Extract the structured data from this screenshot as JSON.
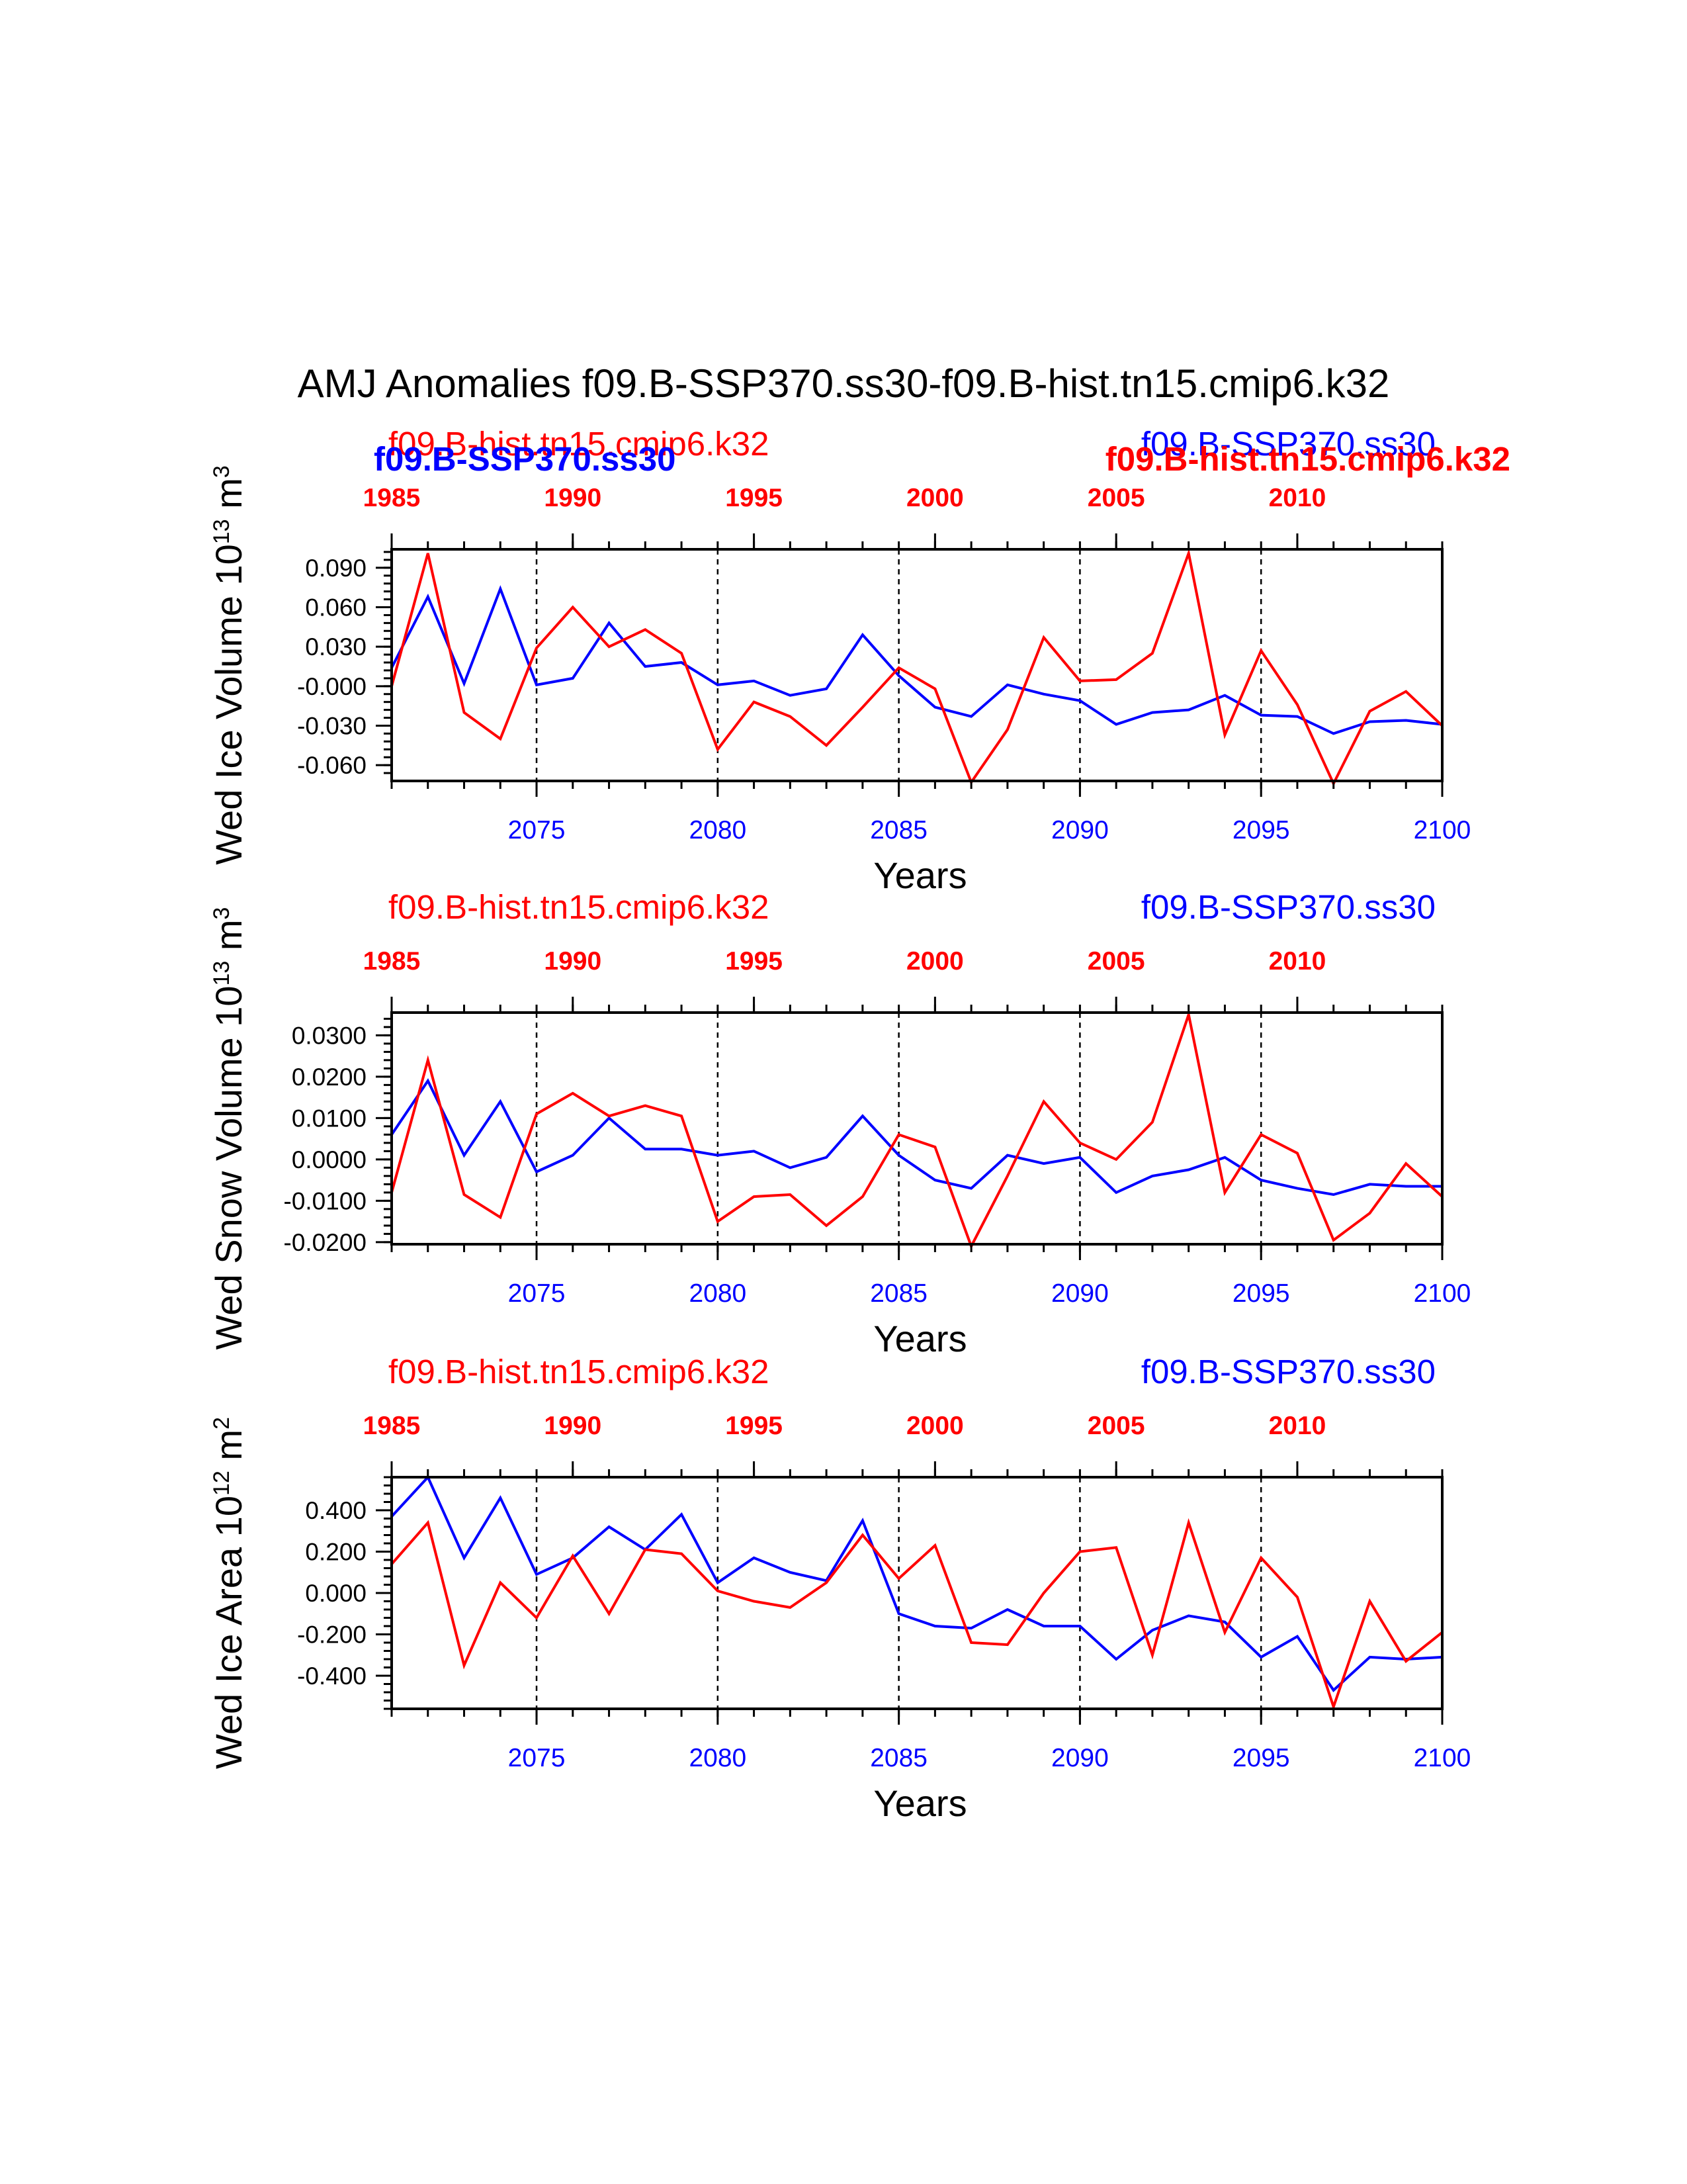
{
  "title": "AMJ Anomalies f09.B-SSP370.ss30-f09.B-hist.tn15.cmip6.k32",
  "colors": {
    "series_blue": "#0000ff",
    "series_red": "#ff0000",
    "axis": "#000000"
  },
  "chart_data": [
    {
      "type": "line",
      "ylabel_main": "Wed Ice Volume 10",
      "ylabel_exp": "13",
      "ylabel_unit": " m",
      "ylabel_unit_exp": "3",
      "xlabel": "Years",
      "ylim": [
        -0.072,
        0.104
      ],
      "yticks": [
        -0.06,
        -0.03,
        0.0,
        0.03,
        0.06,
        0.09
      ],
      "ytick_labels": [
        "-0.060",
        "-0.030",
        "-0.000",
        "0.030",
        "0.060",
        "0.090"
      ],
      "yminor_step": 0.006,
      "xlim": [
        2071,
        2100
      ],
      "bottom_ticks": [
        2075,
        2080,
        2085,
        2090,
        2095,
        2100
      ],
      "top_ticks": [
        1985,
        1990,
        1995,
        2000,
        2005,
        2010
      ],
      "top_offset": -86,
      "grid_years": [
        2075,
        2080,
        2085,
        2090,
        2095
      ],
      "label_red": "f09.B-hist.tn15.cmip6.k32",
      "label_blue": "f09.B-SSP370.ss30",
      "overlay_blue": "f09.B-SSP370.ss30",
      "overlay_red": "f09.B-hist.tn15.cmip6.k32",
      "x": [
        2071,
        2072,
        2073,
        2074,
        2075,
        2076,
        2077,
        2078,
        2079,
        2080,
        2081,
        2082,
        2083,
        2084,
        2085,
        2086,
        2087,
        2088,
        2089,
        2090,
        2091,
        2092,
        2093,
        2094,
        2095,
        2096,
        2097,
        2098,
        2099,
        2100
      ],
      "series": [
        {
          "name": "f09.B-SSP370.ss30",
          "color": "#0000ff",
          "values": [
            0.014,
            0.068,
            0.002,
            0.074,
            0.001,
            0.006,
            0.048,
            0.015,
            0.018,
            0.001,
            0.004,
            -0.007,
            -0.002,
            0.039,
            0.008,
            -0.016,
            -0.023,
            0.001,
            -0.006,
            -0.011,
            -0.029,
            -0.02,
            -0.018,
            -0.007,
            -0.022,
            -0.023,
            -0.036,
            -0.027,
            -0.026,
            -0.029
          ]
        },
        {
          "name": "f09.B-hist.tn15.cmip6.k32",
          "color": "#ff0000",
          "values": [
            0.0,
            0.101,
            -0.02,
            -0.04,
            0.029,
            0.06,
            0.03,
            0.043,
            0.025,
            -0.048,
            -0.012,
            -0.023,
            -0.045,
            -0.016,
            0.014,
            -0.002,
            -0.073,
            -0.033,
            0.037,
            0.004,
            0.005,
            0.025,
            0.101,
            -0.037,
            0.027,
            -0.014,
            -0.074,
            -0.019,
            -0.004,
            -0.03
          ]
        }
      ]
    },
    {
      "type": "line",
      "ylabel_main": "Wed Snow Volume 10",
      "ylabel_exp": "13",
      "ylabel_unit": " m",
      "ylabel_unit_exp": "3",
      "xlabel": "Years",
      "ylim": [
        -0.0205,
        0.0355
      ],
      "yticks": [
        -0.02,
        -0.01,
        0.0,
        0.01,
        0.02,
        0.03
      ],
      "ytick_labels": [
        "-0.0200",
        "-0.0100",
        "0.0000",
        "0.0100",
        "0.0200",
        "0.0300"
      ],
      "yminor_step": 0.002,
      "xlim": [
        2071,
        2100
      ],
      "bottom_ticks": [
        2075,
        2080,
        2085,
        2090,
        2095,
        2100
      ],
      "top_ticks": [
        1985,
        1990,
        1995,
        2000,
        2005,
        2010
      ],
      "top_offset": -86,
      "grid_years": [
        2075,
        2080,
        2085,
        2090,
        2095
      ],
      "label_red": "f09.B-hist.tn15.cmip6.k32",
      "label_blue": "f09.B-SSP370.ss30",
      "x": [
        2071,
        2072,
        2073,
        2074,
        2075,
        2076,
        2077,
        2078,
        2079,
        2080,
        2081,
        2082,
        2083,
        2084,
        2085,
        2086,
        2087,
        2088,
        2089,
        2090,
        2091,
        2092,
        2093,
        2094,
        2095,
        2096,
        2097,
        2098,
        2099,
        2100
      ],
      "series": [
        {
          "name": "f09.B-SSP370.ss30",
          "color": "#0000ff",
          "values": [
            0.006,
            0.019,
            0.001,
            0.014,
            -0.003,
            0.001,
            0.01,
            0.0025,
            0.0025,
            0.001,
            0.002,
            -0.002,
            0.0005,
            0.0105,
            0.001,
            -0.005,
            -0.007,
            0.001,
            -0.001,
            0.0005,
            -0.008,
            -0.004,
            -0.0025,
            0.0005,
            -0.005,
            -0.007,
            -0.0085,
            -0.006,
            -0.0065,
            -0.0065
          ]
        },
        {
          "name": "f09.B-hist.tn15.cmip6.k32",
          "color": "#ff0000",
          "values": [
            -0.008,
            0.024,
            -0.0085,
            -0.014,
            0.011,
            0.016,
            0.0105,
            0.013,
            0.0105,
            -0.015,
            -0.009,
            -0.0085,
            -0.016,
            -0.009,
            0.006,
            0.003,
            -0.021,
            -0.004,
            0.014,
            0.004,
            0.0,
            0.009,
            0.035,
            -0.008,
            0.006,
            0.0015,
            -0.0195,
            -0.013,
            -0.001,
            -0.009
          ]
        }
      ]
    },
    {
      "type": "line",
      "ylabel_main": "Wed Ice Area 10",
      "ylabel_exp": "12",
      "ylabel_unit": " m",
      "ylabel_unit_exp": "2",
      "xlabel": "Years",
      "ylim": [
        -0.56,
        0.56
      ],
      "yticks": [
        -0.4,
        -0.2,
        0.0,
        0.2,
        0.4
      ],
      "ytick_labels": [
        "-0.400",
        "-0.200",
        "0.000",
        "0.200",
        "0.400"
      ],
      "yminor_step": 0.04,
      "xlim": [
        2071,
        2100
      ],
      "bottom_ticks": [
        2075,
        2080,
        2085,
        2090,
        2095,
        2100
      ],
      "top_ticks": [
        1985,
        1990,
        1995,
        2000,
        2005,
        2010
      ],
      "top_offset": -86,
      "grid_years": [
        2075,
        2080,
        2085,
        2090,
        2095
      ],
      "label_red": "f09.B-hist.tn15.cmip6.k32",
      "label_blue": "f09.B-SSP370.ss30",
      "x": [
        2071,
        2072,
        2073,
        2074,
        2075,
        2076,
        2077,
        2078,
        2079,
        2080,
        2081,
        2082,
        2083,
        2084,
        2085,
        2086,
        2087,
        2088,
        2089,
        2090,
        2091,
        2092,
        2093,
        2094,
        2095,
        2096,
        2097,
        2098,
        2099,
        2100
      ],
      "series": [
        {
          "name": "f09.B-SSP370.ss30",
          "color": "#0000ff",
          "values": [
            0.37,
            0.56,
            0.17,
            0.46,
            0.09,
            0.17,
            0.32,
            0.21,
            0.38,
            0.05,
            0.17,
            0.1,
            0.06,
            0.35,
            -0.1,
            -0.16,
            -0.17,
            -0.08,
            -0.16,
            -0.16,
            -0.32,
            -0.18,
            -0.11,
            -0.14,
            -0.31,
            -0.21,
            -0.47,
            -0.31,
            -0.32,
            -0.31
          ]
        },
        {
          "name": "f09.B-hist.tn15.cmip6.k32",
          "color": "#ff0000",
          "values": [
            0.14,
            0.34,
            -0.35,
            0.05,
            -0.12,
            0.18,
            -0.1,
            0.21,
            0.19,
            0.01,
            -0.04,
            -0.07,
            0.05,
            0.28,
            0.07,
            0.23,
            -0.24,
            -0.25,
            0.0,
            0.2,
            0.22,
            -0.3,
            0.34,
            -0.19,
            0.17,
            -0.02,
            -0.55,
            -0.04,
            -0.33,
            -0.19
          ]
        }
      ]
    }
  ]
}
